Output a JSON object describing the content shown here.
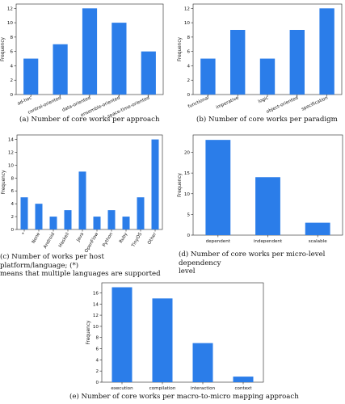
{
  "bar_color": "#2b7de9",
  "chart_data": [
    {
      "id": "a",
      "type": "bar",
      "caption": "(a) Number of core works per approach",
      "categories": [
        "ad-hoc",
        "control-oriented",
        "data-oriented",
        "ensemble-oriented",
        "space-time-oriented"
      ],
      "values": [
        5,
        7,
        12,
        10,
        6
      ],
      "ylabel": "Frequency",
      "yticks": [
        0,
        2,
        4,
        6,
        8,
        10,
        12
      ],
      "ylim": [
        0,
        12.6
      ],
      "xlabel_rotation": 25
    },
    {
      "id": "b",
      "type": "bar",
      "caption": "(b) Number of core works per paradigm",
      "categories": [
        "functional",
        "imperative",
        "logic",
        "object-oriented",
        "specification"
      ],
      "values": [
        5,
        9,
        5,
        9,
        12
      ],
      "ylabel": "Frequency",
      "yticks": [
        0,
        2,
        4,
        6,
        8,
        10,
        12
      ],
      "ylim": [
        0,
        12.6
      ],
      "xlabel_rotation": 25
    },
    {
      "id": "c",
      "type": "bar",
      "caption": "(c) Number of works per host platform/language; (*)\nmeans that multiple languages are supported",
      "categories": [
        "*",
        "None",
        "Android",
        "Haskell",
        "Java",
        "OpenFlow",
        "Python",
        "Ruby",
        "TinyOS",
        "Other"
      ],
      "values": [
        5,
        4,
        2,
        3,
        9,
        2,
        3,
        2,
        5,
        14
      ],
      "ylabel": "Frequency",
      "yticks": [
        0,
        2,
        4,
        6,
        8,
        10,
        12,
        14
      ],
      "ylim": [
        0,
        14.7
      ],
      "xlabel_rotation": 60
    },
    {
      "id": "d",
      "type": "bar",
      "caption": "(d) Number of core works per micro-level dependency\nlevel",
      "categories": [
        "dependent",
        "independent",
        "scalable"
      ],
      "values": [
        23,
        14,
        3
      ],
      "ylabel": "Frequency",
      "yticks": [
        0,
        5,
        10,
        15,
        20
      ],
      "ylim": [
        0,
        24.2
      ],
      "xlabel_rotation": 0
    },
    {
      "id": "e",
      "type": "bar",
      "caption": "(e) Number of core works per macro-to-micro mapping approach",
      "categories": [
        "execution",
        "compilation",
        "interaction",
        "context"
      ],
      "values": [
        17,
        15,
        7,
        1
      ],
      "ylabel": "Frequency",
      "yticks": [
        0,
        2,
        4,
        6,
        8,
        10,
        12,
        14,
        16
      ],
      "ylim": [
        0,
        17.8
      ],
      "xlabel_rotation": 0
    }
  ]
}
